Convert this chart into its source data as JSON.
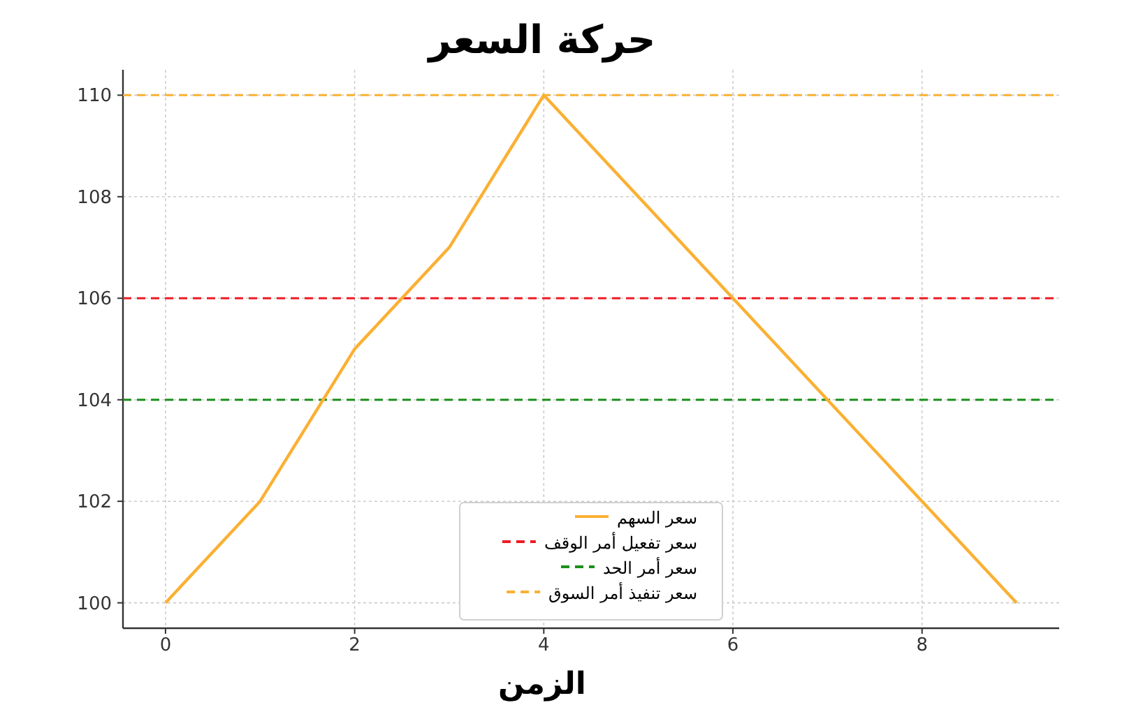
{
  "chart_data": {
    "type": "line",
    "title": "حركة السعر",
    "xlabel": "الزمن",
    "x": [
      0,
      1,
      2,
      3,
      4,
      5,
      6,
      7,
      8,
      9
    ],
    "series": [
      {
        "name": "سعر السهم",
        "color": "#fbb033",
        "values": [
          100,
          102,
          105,
          107,
          110,
          108,
          106,
          104,
          102,
          100
        ]
      }
    ],
    "ref_lines": [
      {
        "axis": "y",
        "value": 106,
        "label": "سعر تفعيل أمر الوقف",
        "color": "#ee1c25",
        "line_style": "dashed"
      },
      {
        "axis": "y",
        "value": 104,
        "label": "سعر أمر الحد",
        "color": "#1a8f1a",
        "line_style": "dashed"
      },
      {
        "axis": "y",
        "value": 110,
        "label": "سعر تنفيذ أمر السوق",
        "color": "#fbb033",
        "line_style": "dashed"
      }
    ],
    "xlim": [
      -0.45,
      9.45
    ],
    "ylim": [
      99.5,
      110.5
    ],
    "xticks": [
      0,
      2,
      4,
      6,
      8
    ],
    "yticks": [
      100,
      102,
      104,
      106,
      108,
      110
    ],
    "grid": true,
    "legend": "bottom",
    "marker": "none",
    "line_style": "solid"
  }
}
